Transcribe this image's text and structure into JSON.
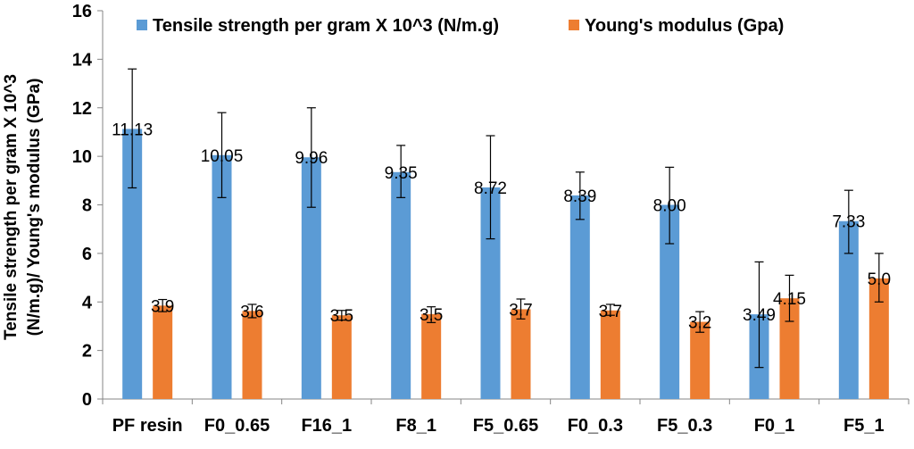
{
  "chart_data": {
    "type": "bar",
    "title": "",
    "xlabel": "",
    "ylabel_line1": "Tensile strength per gram X 10^3",
    "ylabel_line2": "(N/m.g)/ Young's modulus (GPa)",
    "ylim": [
      0,
      16
    ],
    "yticks": [
      0,
      2,
      4,
      6,
      8,
      10,
      12,
      14,
      16
    ],
    "grid": false,
    "legend_position": "top",
    "categories": [
      "PF resin",
      "F0_0.65",
      "F16_1",
      "F8_1",
      "F5_0.65",
      "F0_0.3",
      "F5_0.3",
      "F0_1",
      "F5_1"
    ],
    "series": [
      {
        "name": "Tensile strength per gram X 10^3 (N/m.g)",
        "color": "#5b9bd5",
        "values": [
          11.13,
          10.05,
          9.96,
          9.35,
          8.72,
          8.39,
          8.0,
          3.49,
          7.33
        ],
        "labels": [
          "11.13",
          "10.05",
          "9.96",
          "9.35",
          "8.72",
          "8.39",
          "8.00",
          "3.49",
          "7.33"
        ],
        "err_low": [
          8.7,
          8.3,
          7.9,
          8.3,
          6.6,
          7.4,
          6.4,
          1.3,
          6.0
        ],
        "err_high": [
          13.6,
          11.8,
          12.0,
          10.45,
          10.85,
          9.35,
          9.55,
          5.65,
          8.6
        ]
      },
      {
        "name": "Young's modulus (Gpa)",
        "color": "#ed7d31",
        "values": [
          3.85,
          3.63,
          3.45,
          3.5,
          3.7,
          3.65,
          3.18,
          4.15,
          4.97
        ],
        "labels": [
          "3.9",
          "3.6",
          "3.5",
          "3.5",
          "3.7",
          "3.7",
          "3.2",
          "4.15",
          "5.0"
        ],
        "err_low": [
          3.6,
          3.35,
          3.25,
          3.15,
          3.3,
          3.45,
          2.75,
          3.2,
          4.0
        ],
        "err_high": [
          4.1,
          3.9,
          3.65,
          3.8,
          4.12,
          3.9,
          3.6,
          5.1,
          6.0
        ]
      }
    ]
  }
}
